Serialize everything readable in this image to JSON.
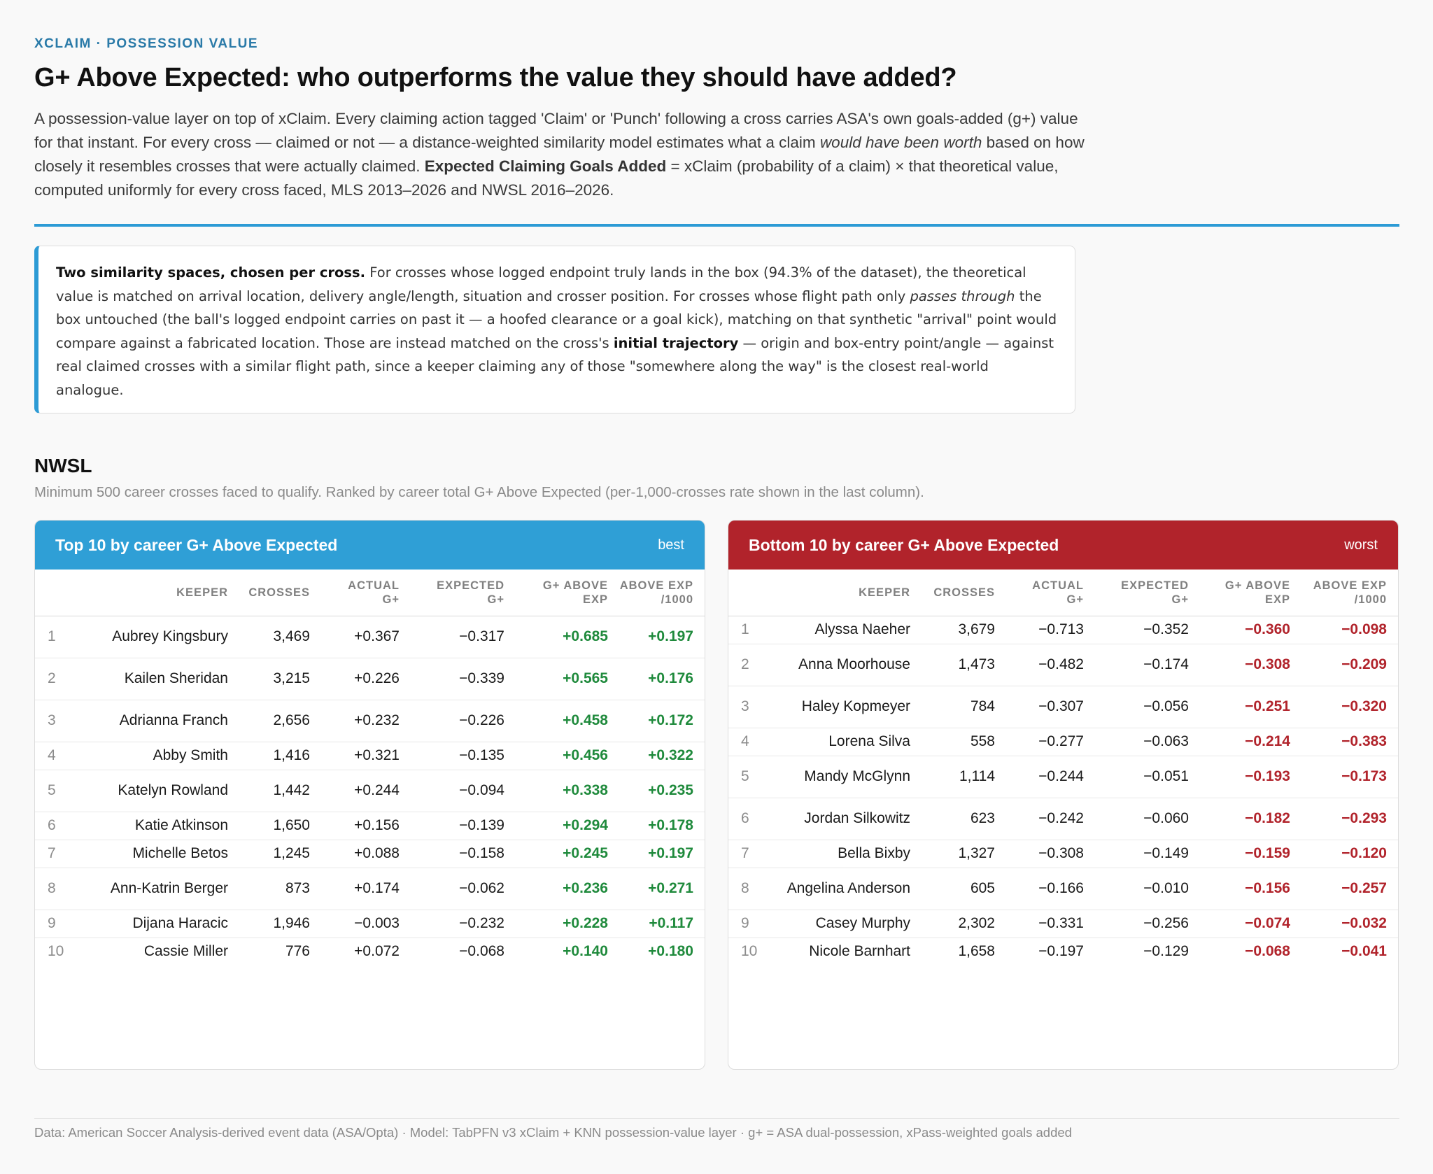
{
  "header": {
    "eyebrow": "XCLAIM · POSSESSION VALUE",
    "title": "G+ Above Expected: who outperforms the value they should have added?",
    "lede": {
      "p1": "A possession-value layer on top of xClaim. Every claiming action tagged 'Claim' or 'Punch' following a cross carries ASA's own goals-added (g+) value for that instant. For every cross — claimed or not — a distance-weighted similarity model estimates what a claim ",
      "em1": "would have been worth",
      "p2": " based on how closely it resembles crosses that were actually claimed. ",
      "b1": "Expected Claiming Goals Added",
      "p3": " = xClaim (probability of a claim) × that theoretical value, computed uniformly for every cross faced, MLS 2013–2026 and NWSL 2016–2026."
    }
  },
  "note": {
    "b1": "Two similarity spaces, chosen per cross.",
    "p1": " For crosses whose logged endpoint truly lands in the box (94.3% of the dataset), the theoretical value is matched on arrival location, delivery angle/length, situation and crosser position. For crosses whose flight path only ",
    "em1": "passes through",
    "p2": " the box untouched (the ball's logged endpoint carries on past it — a hoofed clearance or a goal kick), matching on that synthetic \"arrival\" point would compare against a fabricated location. Those are instead matched on the cross's ",
    "b2": "initial trajectory",
    "p3": " — origin and box-entry point/angle — against real claimed crosses with a similar flight path, since a keeper claiming any of those \"somewhere along the way\" is the closest real-world analogue."
  },
  "section": {
    "title": "NWSL",
    "subtitle": "Minimum 500 career crosses faced to qualify. Ranked by career total G+ Above Expected (per-1,000-crosses rate shown in the last column)."
  },
  "columns": {
    "keeper": "KEEPER",
    "crosses": "CROSSES",
    "actual_1": "ACTUAL",
    "actual_2": "G+",
    "expected_1": "EXPECTED",
    "expected_2": "G+",
    "gplus_1": "G+ ABOVE",
    "gplus_2": "EXP",
    "rate_1": "ABOVE EXP",
    "rate_2": "/1000"
  },
  "top": {
    "title": "Top 10 by career G+ Above Expected",
    "tag": "best",
    "accent": "#2f9fd6",
    "rows": [
      {
        "rank": "1",
        "keeper": "Aubrey Kingsbury",
        "crosses": "3,469",
        "actual": "+0.367",
        "expected": "−0.317",
        "above": "+0.685",
        "rate": "+0.197"
      },
      {
        "rank": "2",
        "keeper": "Kailen Sheridan",
        "crosses": "3,215",
        "actual": "+0.226",
        "expected": "−0.339",
        "above": "+0.565",
        "rate": "+0.176"
      },
      {
        "rank": "3",
        "keeper": "Adrianna Franch",
        "crosses": "2,656",
        "actual": "+0.232",
        "expected": "−0.226",
        "above": "+0.458",
        "rate": "+0.172"
      },
      {
        "rank": "4",
        "keeper": "Abby Smith",
        "crosses": "1,416",
        "actual": "+0.321",
        "expected": "−0.135",
        "above": "+0.456",
        "rate": "+0.322"
      },
      {
        "rank": "5",
        "keeper": "Katelyn Rowland",
        "crosses": "1,442",
        "actual": "+0.244",
        "expected": "−0.094",
        "above": "+0.338",
        "rate": "+0.235"
      },
      {
        "rank": "6",
        "keeper": "Katie Atkinson",
        "crosses": "1,650",
        "actual": "+0.156",
        "expected": "−0.139",
        "above": "+0.294",
        "rate": "+0.178"
      },
      {
        "rank": "7",
        "keeper": "Michelle Betos",
        "crosses": "1,245",
        "actual": "+0.088",
        "expected": "−0.158",
        "above": "+0.245",
        "rate": "+0.197"
      },
      {
        "rank": "8",
        "keeper": "Ann-Katrin Berger",
        "crosses": "873",
        "actual": "+0.174",
        "expected": "−0.062",
        "above": "+0.236",
        "rate": "+0.271"
      },
      {
        "rank": "9",
        "keeper": "Dijana Haracic",
        "crosses": "1,946",
        "actual": "−0.003",
        "expected": "−0.232",
        "above": "+0.228",
        "rate": "+0.117"
      },
      {
        "rank": "10",
        "keeper": "Cassie Miller",
        "crosses": "776",
        "actual": "+0.072",
        "expected": "−0.068",
        "above": "+0.140",
        "rate": "+0.180"
      }
    ]
  },
  "bottom": {
    "title": "Bottom 10 by career G+ Above Expected",
    "tag": "worst",
    "accent": "#b1232b",
    "rows": [
      {
        "rank": "1",
        "keeper": "Alyssa Naeher",
        "crosses": "3,679",
        "actual": "−0.713",
        "expected": "−0.352",
        "above": "−0.360",
        "rate": "−0.098"
      },
      {
        "rank": "2",
        "keeper": "Anna Moorhouse",
        "crosses": "1,473",
        "actual": "−0.482",
        "expected": "−0.174",
        "above": "−0.308",
        "rate": "−0.209"
      },
      {
        "rank": "3",
        "keeper": "Haley Kopmeyer",
        "crosses": "784",
        "actual": "−0.307",
        "expected": "−0.056",
        "above": "−0.251",
        "rate": "−0.320"
      },
      {
        "rank": "4",
        "keeper": "Lorena Silva",
        "crosses": "558",
        "actual": "−0.277",
        "expected": "−0.063",
        "above": "−0.214",
        "rate": "−0.383"
      },
      {
        "rank": "5",
        "keeper": "Mandy McGlynn",
        "crosses": "1,114",
        "actual": "−0.244",
        "expected": "−0.051",
        "above": "−0.193",
        "rate": "−0.173"
      },
      {
        "rank": "6",
        "keeper": "Jordan Silkowitz",
        "crosses": "623",
        "actual": "−0.242",
        "expected": "−0.060",
        "above": "−0.182",
        "rate": "−0.293"
      },
      {
        "rank": "7",
        "keeper": "Bella Bixby",
        "crosses": "1,327",
        "actual": "−0.308",
        "expected": "−0.149",
        "above": "−0.159",
        "rate": "−0.120"
      },
      {
        "rank": "8",
        "keeper": "Angelina Anderson",
        "crosses": "605",
        "actual": "−0.166",
        "expected": "−0.010",
        "above": "−0.156",
        "rate": "−0.257"
      },
      {
        "rank": "9",
        "keeper": "Casey Murphy",
        "crosses": "2,302",
        "actual": "−0.331",
        "expected": "−0.256",
        "above": "−0.074",
        "rate": "−0.032"
      },
      {
        "rank": "10",
        "keeper": "Nicole Barnhart",
        "crosses": "1,658",
        "actual": "−0.197",
        "expected": "−0.129",
        "above": "−0.068",
        "rate": "−0.041"
      }
    ]
  },
  "footer": "Data: American Soccer Analysis-derived event data (ASA/Opta) · Model: TabPFN v3 xClaim + KNN possession-value layer · g+ = ASA dual-possession, xPass-weighted goals added"
}
